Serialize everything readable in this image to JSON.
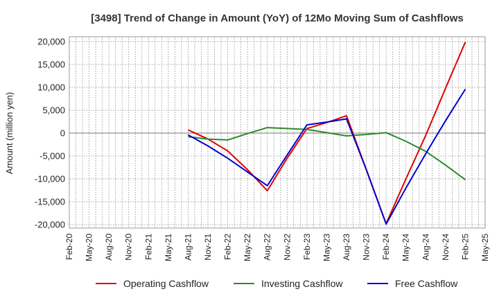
{
  "chart_data": {
    "type": "line",
    "title": "[3498]  Trend of Change in Amount (YoY) of 12Mo Moving Sum of Cashflows",
    "xlabel": "",
    "ylabel": "Amount (million yen)",
    "ylim": [
      -20000,
      20000
    ],
    "yticks": [
      20000,
      15000,
      10000,
      5000,
      0,
      -5000,
      -10000,
      -15000,
      -20000
    ],
    "ytick_labels": [
      "20,000",
      "15,000",
      "10,000",
      "5,000",
      "0",
      "-5,000",
      "-10,000",
      "-15,000",
      "-20,000"
    ],
    "categories": [
      "Feb-20",
      "May-20",
      "Aug-20",
      "Nov-20",
      "Feb-21",
      "May-21",
      "Aug-21",
      "Nov-21",
      "Feb-22",
      "May-22",
      "Aug-22",
      "Nov-22",
      "Feb-23",
      "May-23",
      "Aug-23",
      "Nov-23",
      "Feb-24",
      "May-24",
      "Aug-24",
      "Nov-24",
      "Feb-25",
      "May-25"
    ],
    "grid": true,
    "legend_position": "bottom",
    "series": [
      {
        "name": "Operating Cashflow",
        "color": "#e00000",
        "values": [
          null,
          null,
          null,
          null,
          null,
          null,
          700,
          -1300,
          -3900,
          -8000,
          -12600,
          -5500,
          1000,
          2300,
          3800,
          -8000,
          -19800,
          -10000,
          -500,
          9800,
          19900,
          null
        ]
      },
      {
        "name": "Investing Cashflow",
        "color": "#2a8a2a",
        "values": [
          null,
          null,
          null,
          null,
          null,
          null,
          -800,
          -1300,
          -1500,
          -100,
          1200,
          1000,
          800,
          100,
          -600,
          -300,
          100,
          -1800,
          -4000,
          -7000,
          -10200,
          null
        ]
      },
      {
        "name": "Free Cashflow",
        "color": "#0000cc",
        "values": [
          null,
          null,
          null,
          null,
          null,
          null,
          -400,
          -2800,
          -5500,
          -8500,
          -11500,
          -4800,
          1800,
          2400,
          3100,
          -8000,
          -19900,
          -12000,
          -4500,
          2700,
          9600,
          null
        ]
      }
    ]
  }
}
